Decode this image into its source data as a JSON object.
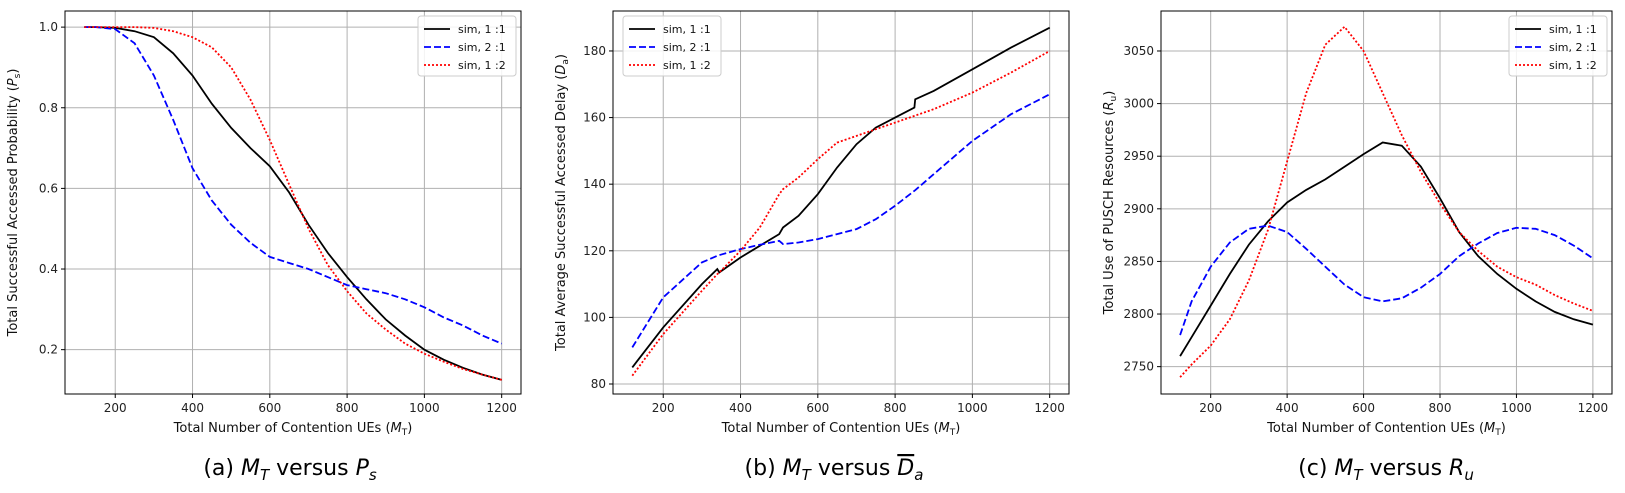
{
  "colors": {
    "black": "#000000",
    "blue": "#0000ff",
    "red": "#ff0000"
  },
  "chart_data": [
    {
      "type": "line",
      "ylabel": "Total Successful Accessed Probability (P_s)",
      "ylabel_main": "Total Successful Accessed Probability (",
      "ylabel_sym": "P",
      "ylabel_sub": "s",
      "xlabel_main": "Total Number of Contention UEs (",
      "xlabel_sym": "M",
      "xlabel_sub": "T",
      "caption": "(a) M_T versus P_s",
      "caption_prefix": "(a) ",
      "caption_m": "M",
      "caption_t": "T",
      "caption_mid": " versus ",
      "caption_y": "P",
      "caption_y_sub": "s",
      "caption_overline": false,
      "xlim": [
        70,
        1250
      ],
      "ylim": [
        0.09,
        1.04
      ],
      "xticks": [
        200,
        400,
        600,
        800,
        1000,
        1200
      ],
      "xtick_labels": [
        "200",
        "400",
        "600",
        "800",
        "1000",
        "1200"
      ],
      "yticks": [
        0.2,
        0.4,
        0.6,
        0.8,
        1.0
      ],
      "ytick_labels": [
        "0.2",
        "0.4",
        "0.6",
        "0.8",
        "1.0"
      ],
      "legend": "top-right",
      "x": [
        120,
        150,
        200,
        250,
        300,
        350,
        400,
        450,
        500,
        550,
        600,
        650,
        700,
        750,
        800,
        850,
        900,
        950,
        1000,
        1050,
        1100,
        1150,
        1200
      ],
      "series": [
        {
          "name": "sim, 1 :1",
          "style": "solid",
          "color": "#000000",
          "values": [
            1.0,
            1.0,
            0.998,
            0.99,
            0.975,
            0.935,
            0.88,
            0.81,
            0.75,
            0.7,
            0.655,
            0.59,
            0.51,
            0.44,
            0.38,
            0.325,
            0.275,
            0.235,
            0.2,
            0.175,
            0.155,
            0.138,
            0.125
          ]
        },
        {
          "name": "sim, 2 :1",
          "style": "dashed",
          "color": "#0000ff",
          "values": [
            1.0,
            1.0,
            0.995,
            0.96,
            0.88,
            0.77,
            0.65,
            0.57,
            0.51,
            0.465,
            0.43,
            0.415,
            0.4,
            0.38,
            0.36,
            0.35,
            0.34,
            0.325,
            0.305,
            0.28,
            0.26,
            0.235,
            0.215
          ]
        },
        {
          "name": "sim, 1 :2",
          "style": "dotted",
          "color": "#ff0000",
          "values": [
            1.0,
            1.0,
            1.0,
            1.0,
            0.998,
            0.99,
            0.975,
            0.95,
            0.9,
            0.82,
            0.72,
            0.61,
            0.5,
            0.41,
            0.345,
            0.29,
            0.25,
            0.215,
            0.19,
            0.17,
            0.152,
            0.138,
            0.125
          ]
        }
      ]
    },
    {
      "type": "line",
      "ylabel": "Total Average Successful Accessed Delay (D_a)",
      "ylabel_main": "Total Average Successful Accessed Delay (",
      "ylabel_sym": "D",
      "ylabel_sub": "a",
      "xlabel_main": "Total Number of Contention UEs (",
      "xlabel_sym": "M",
      "xlabel_sub": "T",
      "caption": "(b) M_T versus D_a",
      "caption_prefix": "(b) ",
      "caption_m": "M",
      "caption_t": "T",
      "caption_mid": " versus ",
      "caption_y": "D",
      "caption_y_sub": "a",
      "caption_overline": true,
      "xlim": [
        70,
        1250
      ],
      "ylim": [
        77,
        192
      ],
      "xticks": [
        200,
        400,
        600,
        800,
        1000,
        1200
      ],
      "xtick_labels": [
        "200",
        "400",
        "600",
        "800",
        "1000",
        "1200"
      ],
      "yticks": [
        80,
        100,
        120,
        140,
        160,
        180
      ],
      "ytick_labels": [
        "80",
        "100",
        "120",
        "140",
        "160",
        "180"
      ],
      "legend": "top-left",
      "x": [
        120,
        200,
        300,
        340,
        345,
        400,
        450,
        500,
        510,
        550,
        600,
        650,
        700,
        750,
        800,
        850,
        852,
        900,
        1000,
        1100,
        1200
      ],
      "series": [
        {
          "name": "sim, 1 :1",
          "style": "solid",
          "color": "#000000",
          "values": [
            85,
            97,
            110,
            114.5,
            113.5,
            118,
            121.5,
            125,
            127,
            130.5,
            137,
            145,
            152,
            157,
            160,
            163,
            165.5,
            168,
            174.5,
            181,
            187
          ]
        },
        {
          "name": "sim, 2 :1",
          "style": "dashed",
          "color": "#0000ff",
          "values": [
            91,
            106,
            116.5,
            118.5,
            118.7,
            120.5,
            121.8,
            123,
            122,
            122.5,
            123.5,
            125,
            126.5,
            129.5,
            133.5,
            138,
            138.2,
            143,
            153,
            161,
            167
          ]
        },
        {
          "name": "sim, 1 :2",
          "style": "dotted",
          "color": "#ff0000",
          "values": [
            82.5,
            95,
            108,
            113,
            113.5,
            120,
            127,
            137,
            138.5,
            142,
            147.5,
            152.5,
            154.5,
            156.5,
            158.5,
            160.5,
            160.6,
            162.5,
            167.5,
            173.5,
            180
          ]
        }
      ]
    },
    {
      "type": "line",
      "ylabel": "Total Use of PUSCH Resources (R_u)",
      "ylabel_main": "Total Use of PUSCH Resources (",
      "ylabel_sym": "R",
      "ylabel_sub": "u",
      "xlabel_main": "Total Number of Contention UEs (",
      "xlabel_sym": "M",
      "xlabel_sub": "T",
      "caption": "(c) M_T versus R_u",
      "caption_prefix": "(c) ",
      "caption_m": "M",
      "caption_t": "T",
      "caption_mid": " versus ",
      "caption_y": "R",
      "caption_y_sub": "u",
      "caption_overline": false,
      "xlim": [
        70,
        1250
      ],
      "ylim": [
        2724,
        3088
      ],
      "xticks": [
        200,
        400,
        600,
        800,
        1000,
        1200
      ],
      "xtick_labels": [
        "200",
        "400",
        "600",
        "800",
        "1000",
        "1200"
      ],
      "yticks": [
        2750,
        2800,
        2850,
        2900,
        2950,
        3000,
        3050
      ],
      "ytick_labels": [
        "2750",
        "2800",
        "2850",
        "2900",
        "2950",
        "3000",
        "3050"
      ],
      "legend": "top-right",
      "x": [
        120,
        150,
        200,
        250,
        300,
        350,
        400,
        450,
        500,
        550,
        600,
        650,
        700,
        750,
        800,
        850,
        900,
        950,
        1000,
        1050,
        1100,
        1150,
        1200
      ],
      "series": [
        {
          "name": "sim, 1 :1",
          "style": "solid",
          "color": "#000000",
          "values": [
            2760,
            2778,
            2808,
            2838,
            2866,
            2888,
            2906,
            2918,
            2928,
            2940,
            2952,
            2963,
            2960,
            2940,
            2910,
            2878,
            2855,
            2838,
            2824,
            2812,
            2802,
            2795,
            2790
          ]
        },
        {
          "name": "sim, 2 :1",
          "style": "dashed",
          "color": "#0000ff",
          "values": [
            2780,
            2812,
            2845,
            2868,
            2881,
            2884,
            2878,
            2862,
            2845,
            2828,
            2816,
            2812,
            2815,
            2825,
            2838,
            2855,
            2867,
            2877,
            2882,
            2881,
            2875,
            2865,
            2853
          ]
        },
        {
          "name": "sim, 1 :2",
          "style": "dotted",
          "color": "#ff0000",
          "values": [
            2740,
            2752,
            2770,
            2795,
            2832,
            2880,
            2945,
            3010,
            3056,
            3073,
            3050,
            3010,
            2970,
            2935,
            2905,
            2878,
            2860,
            2845,
            2835,
            2828,
            2818,
            2810,
            2803
          ]
        }
      ]
    }
  ]
}
